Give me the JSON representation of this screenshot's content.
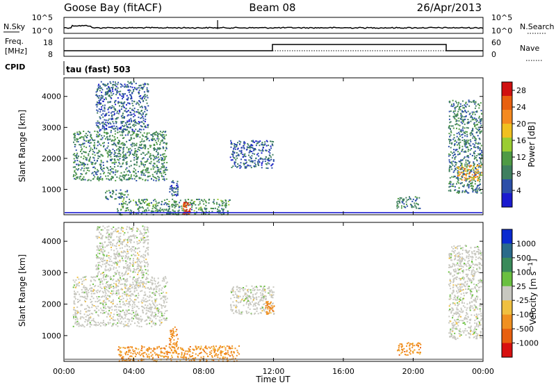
{
  "header": {
    "station": "Goose Bay (fitACF)",
    "beam": "Beam 08",
    "date": "26/Apr/2013"
  },
  "noise_panel": {
    "left_label": "N.Sky",
    "left_ticks": [
      "10^5",
      "10^0"
    ],
    "right_label": "N.Search",
    "right_ticks": [
      "10^5",
      "10^0"
    ]
  },
  "freq_panel": {
    "left_label_1": "Freq.",
    "left_label_2": "[MHz]",
    "left_ticks": [
      "18",
      "8"
    ],
    "right_label": "Nave",
    "right_ticks": [
      "60",
      "0"
    ]
  },
  "cpid_panel": {
    "label": "CPID",
    "text": "tau (fast) 503"
  },
  "colors": {
    "power": [
      "#1a1acf",
      "#2c4fa8",
      "#3f7f5f",
      "#4f9a45",
      "#9acd32",
      "#f0c020",
      "#f58a20",
      "#e86010",
      "#d01010"
    ],
    "velocity": [
      "#0a2ad0",
      "#2a6a8a",
      "#3a8a5a",
      "#6ac040",
      "#c8c8c0",
      "#f0c040",
      "#f09020",
      "#e86010",
      "#d81010"
    ]
  },
  "chart_data": [
    {
      "type": "heatmap",
      "title": "",
      "xlabel": "",
      "ylabel": "Slant Range [km]",
      "xlim": [
        "00:00",
        "24:00"
      ],
      "ylim": [
        180,
        4600
      ],
      "y_ticks": [
        "1000",
        "2000",
        "3000",
        "4000"
      ],
      "colorbar": {
        "label": "Power [dB]",
        "ticks": [
          "4",
          "8",
          "12",
          "16",
          "20",
          "24",
          "28"
        ],
        "range": [
          0,
          30
        ]
      },
      "regions": [
        {
          "t0": 0.5,
          "t1": 5.9,
          "r0": 1300,
          "r1": 2900,
          "value": 9
        },
        {
          "t0": 1.8,
          "t1": 4.8,
          "r0": 2900,
          "r1": 4500,
          "value": 6
        },
        {
          "t0": 2.3,
          "t1": 3.7,
          "r0": 700,
          "r1": 1000,
          "value": 8
        },
        {
          "t0": 6.0,
          "t1": 6.5,
          "r0": 800,
          "r1": 1300,
          "value": 6
        },
        {
          "t0": 3.0,
          "t1": 9.5,
          "r0": 200,
          "r1": 700,
          "value": 10
        },
        {
          "t0": 6.8,
          "t1": 7.2,
          "r0": 200,
          "r1": 600,
          "value": 28
        },
        {
          "t0": 9.5,
          "t1": 12.0,
          "r0": 1700,
          "r1": 2600,
          "value": 6
        },
        {
          "t0": 19.0,
          "t1": 20.4,
          "r0": 400,
          "r1": 800,
          "value": 8
        },
        {
          "t0": 22.0,
          "t1": 23.9,
          "r0": 900,
          "r1": 3900,
          "value": 8
        },
        {
          "t0": 22.5,
          "t1": 23.9,
          "r0": 1300,
          "r1": 1800,
          "value": 20
        }
      ]
    },
    {
      "type": "heatmap",
      "title": "",
      "xlabel": "Time UT",
      "ylabel": "Slant Range [km]",
      "xlim": [
        "00:00",
        "24:00"
      ],
      "ylim": [
        180,
        4600
      ],
      "x_ticks": [
        "00:00",
        "04:00",
        "08:00",
        "12:00",
        "16:00",
        "20:00",
        "00:00"
      ],
      "y_ticks": [
        "1000",
        "2000",
        "3000",
        "4000"
      ],
      "colorbar": {
        "label": "Velocity [m s^-1]",
        "ticks": [
          "1000",
          "500",
          "100",
          "25",
          "-25",
          "-100",
          "-500",
          "-1000"
        ]
      },
      "regions": [
        {
          "t0": 0.5,
          "t1": 5.9,
          "r0": 1300,
          "r1": 2900,
          "value": 0
        },
        {
          "t0": 1.8,
          "t1": 4.8,
          "r0": 2900,
          "r1": 4500,
          "value": 0
        },
        {
          "t0": 6.0,
          "t1": 6.5,
          "r0": 700,
          "r1": 1300,
          "value": -150
        },
        {
          "t0": 3.0,
          "t1": 10.0,
          "r0": 200,
          "r1": 700,
          "value": -150
        },
        {
          "t0": 9.5,
          "t1": 12.0,
          "r0": 1700,
          "r1": 2600,
          "value": 0
        },
        {
          "t0": 11.5,
          "t1": 12.0,
          "r0": 1700,
          "r1": 2100,
          "value": -400
        },
        {
          "t0": 19.0,
          "t1": 20.4,
          "r0": 400,
          "r1": 800,
          "value": -150
        },
        {
          "t0": 22.0,
          "t1": 23.9,
          "r0": 900,
          "r1": 3900,
          "value": 0
        }
      ]
    }
  ]
}
